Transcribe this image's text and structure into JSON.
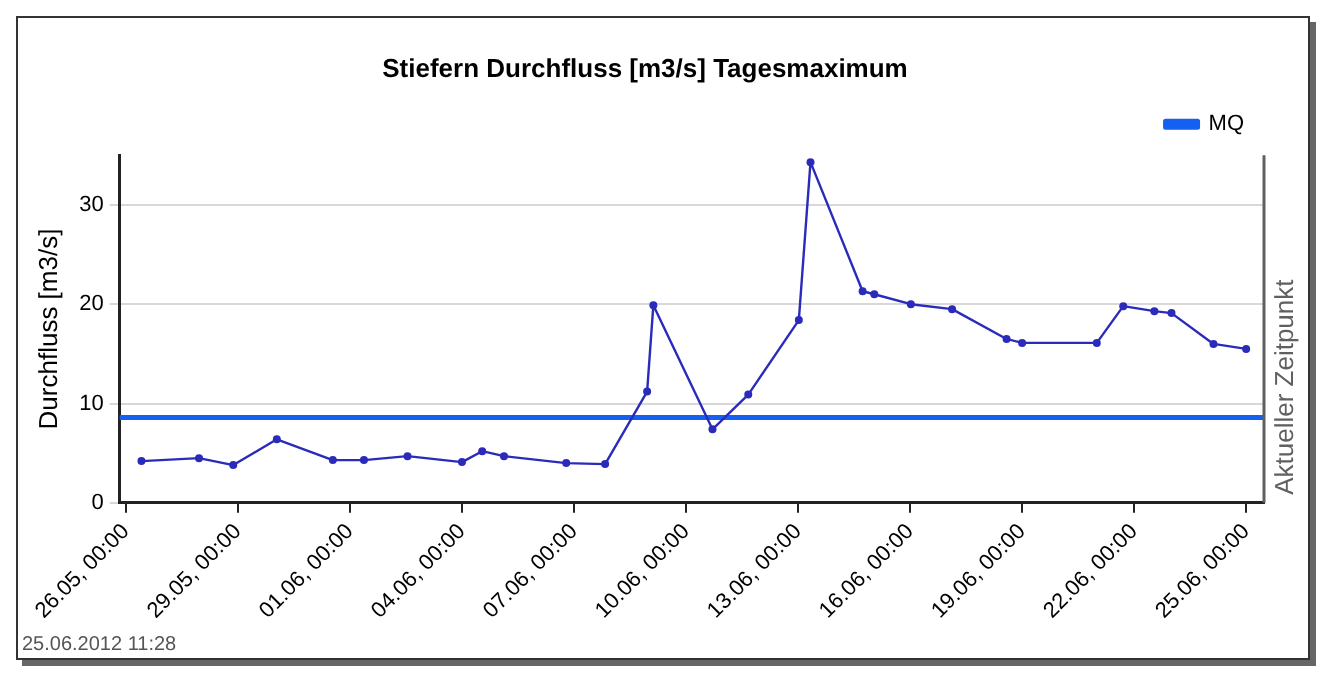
{
  "chart_data": {
    "type": "line",
    "title": "Stiefern Durchfluss [m3/s] Tagesmaximum",
    "ylabel": "Durchfluss [m3/s]",
    "xlim": [
      "2012-05-25T20:00",
      "2012-06-25T11:28"
    ],
    "xticks": [
      {
        "value": "2012-05-26T00:00",
        "label": "26.05, 00:00"
      },
      {
        "value": "2012-05-29T00:00",
        "label": "29.05, 00:00"
      },
      {
        "value": "2012-06-01T00:00",
        "label": "01.06, 00:00"
      },
      {
        "value": "2012-06-04T00:00",
        "label": "04.06, 00:00"
      },
      {
        "value": "2012-06-07T00:00",
        "label": "07.06, 00:00"
      },
      {
        "value": "2012-06-10T00:00",
        "label": "10.06, 00:00"
      },
      {
        "value": "2012-06-13T00:00",
        "label": "13.06, 00:00"
      },
      {
        "value": "2012-06-16T00:00",
        "label": "16.06, 00:00"
      },
      {
        "value": "2012-06-19T00:00",
        "label": "19.06, 00:00"
      },
      {
        "value": "2012-06-22T00:00",
        "label": "22.06, 00:00"
      },
      {
        "value": "2012-06-25T00:00",
        "label": "25.06, 00:00"
      }
    ],
    "ylim": [
      0,
      35
    ],
    "yticks": [
      0,
      10,
      20,
      30
    ],
    "grid": "y",
    "legend": "top right",
    "marker": "circle",
    "line_style": "solid",
    "series": [
      {
        "color": "#2b2bbb",
        "x": [
          "2012-05-26T10:00",
          "2012-05-27T23:00",
          "2012-05-28T21:00",
          "2012-05-30T01:00",
          "2012-05-31T13:00",
          "2012-06-01T09:00",
          "2012-06-02T13:00",
          "2012-06-04T00:00",
          "2012-06-04T13:00",
          "2012-06-05T03:00",
          "2012-06-06T19:00",
          "2012-06-07T20:00",
          "2012-06-08T23:00",
          "2012-06-09T03:00",
          "2012-06-10T17:00",
          "2012-06-11T16:00",
          "2012-06-13T00:30",
          "2012-06-13T08:00",
          "2012-06-14T17:30",
          "2012-06-15T01:00",
          "2012-06-16T00:30",
          "2012-06-17T03:00",
          "2012-06-18T14:00",
          "2012-06-19T00:00",
          "2012-06-21T00:00",
          "2012-06-21T17:00",
          "2012-06-22T13:00",
          "2012-06-23T00:00",
          "2012-06-24T03:00",
          "2012-06-25T00:00"
        ],
        "values": [
          4.2,
          4.5,
          3.8,
          6.4,
          4.3,
          4.3,
          4.7,
          4.1,
          5.2,
          4.7,
          4.0,
          3.9,
          11.2,
          19.9,
          7.4,
          10.9,
          18.4,
          34.3,
          21.3,
          21.0,
          20.0,
          19.5,
          16.5,
          16.1,
          16.1,
          19.8,
          19.3,
          19.1,
          16.0,
          15.5
        ]
      },
      {
        "name": "MQ",
        "type": "line",
        "marker": "none",
        "color": "#1560f0",
        "x": [
          "2012-05-25T20:00",
          "2012-06-25T11:28"
        ],
        "values": [
          8.6,
          8.6
        ]
      }
    ],
    "ref_lines": [
      {
        "axis": "x",
        "value": "2012-06-25T11:28",
        "label": "Aktueller Zeitpunkt",
        "color": "#606060"
      }
    ],
    "annotations": [
      "25.06.2012 11:28"
    ]
  }
}
